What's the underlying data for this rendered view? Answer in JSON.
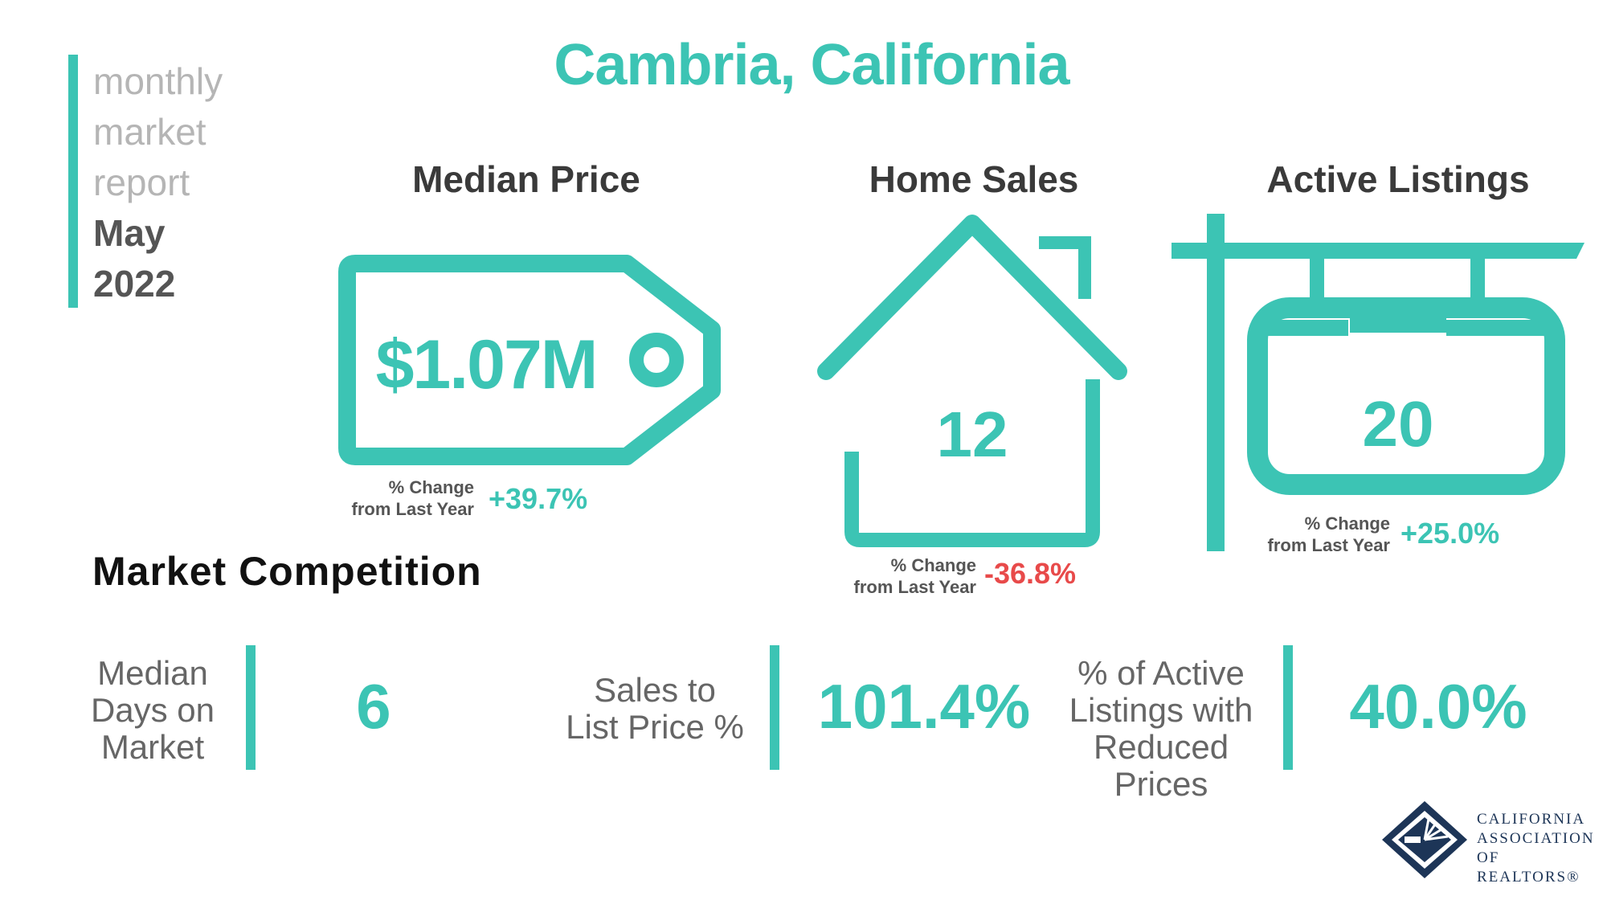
{
  "header": {
    "title": "Cambria, California",
    "sidebar": {
      "line1": "monthly",
      "line2": "market",
      "line3": "report",
      "month": "May",
      "year": "2022"
    }
  },
  "metrics": {
    "median_price": {
      "title": "Median Price",
      "value": "$1.07M",
      "change_label_1": "% Change",
      "change_label_2": "from Last Year",
      "change": "+39.7%"
    },
    "home_sales": {
      "title": "Home Sales",
      "value": "12",
      "change_label_1": "% Change",
      "change_label_2": "from Last Year",
      "change": "-36.8%"
    },
    "active_listings": {
      "title": "Active Listings",
      "value": "20",
      "change_label_1": "% Change",
      "change_label_2": "from Last Year",
      "change": "+25.0%"
    }
  },
  "competition": {
    "title": "Market Competition",
    "days_on_market": {
      "label_1": "Median",
      "label_2": "Days on",
      "label_3": "Market",
      "value": "6"
    },
    "sales_to_list": {
      "label_1": "Sales to",
      "label_2": "List Price %",
      "value": "101.4%"
    },
    "reduced_prices": {
      "label_1": "% of Active",
      "label_2": "Listings with",
      "label_3": "Reduced Prices",
      "value": "40.0%"
    }
  },
  "logo": {
    "line1": "CALIFORNIA",
    "line2": "ASSOCIATION",
    "line3": "OF REALTORS®",
    "icon": "car-logo-icon"
  },
  "colors": {
    "accent": "#3cc4b4",
    "positive": "#3cc4b4",
    "negative": "#e84a4a",
    "navy": "#1d3557"
  }
}
